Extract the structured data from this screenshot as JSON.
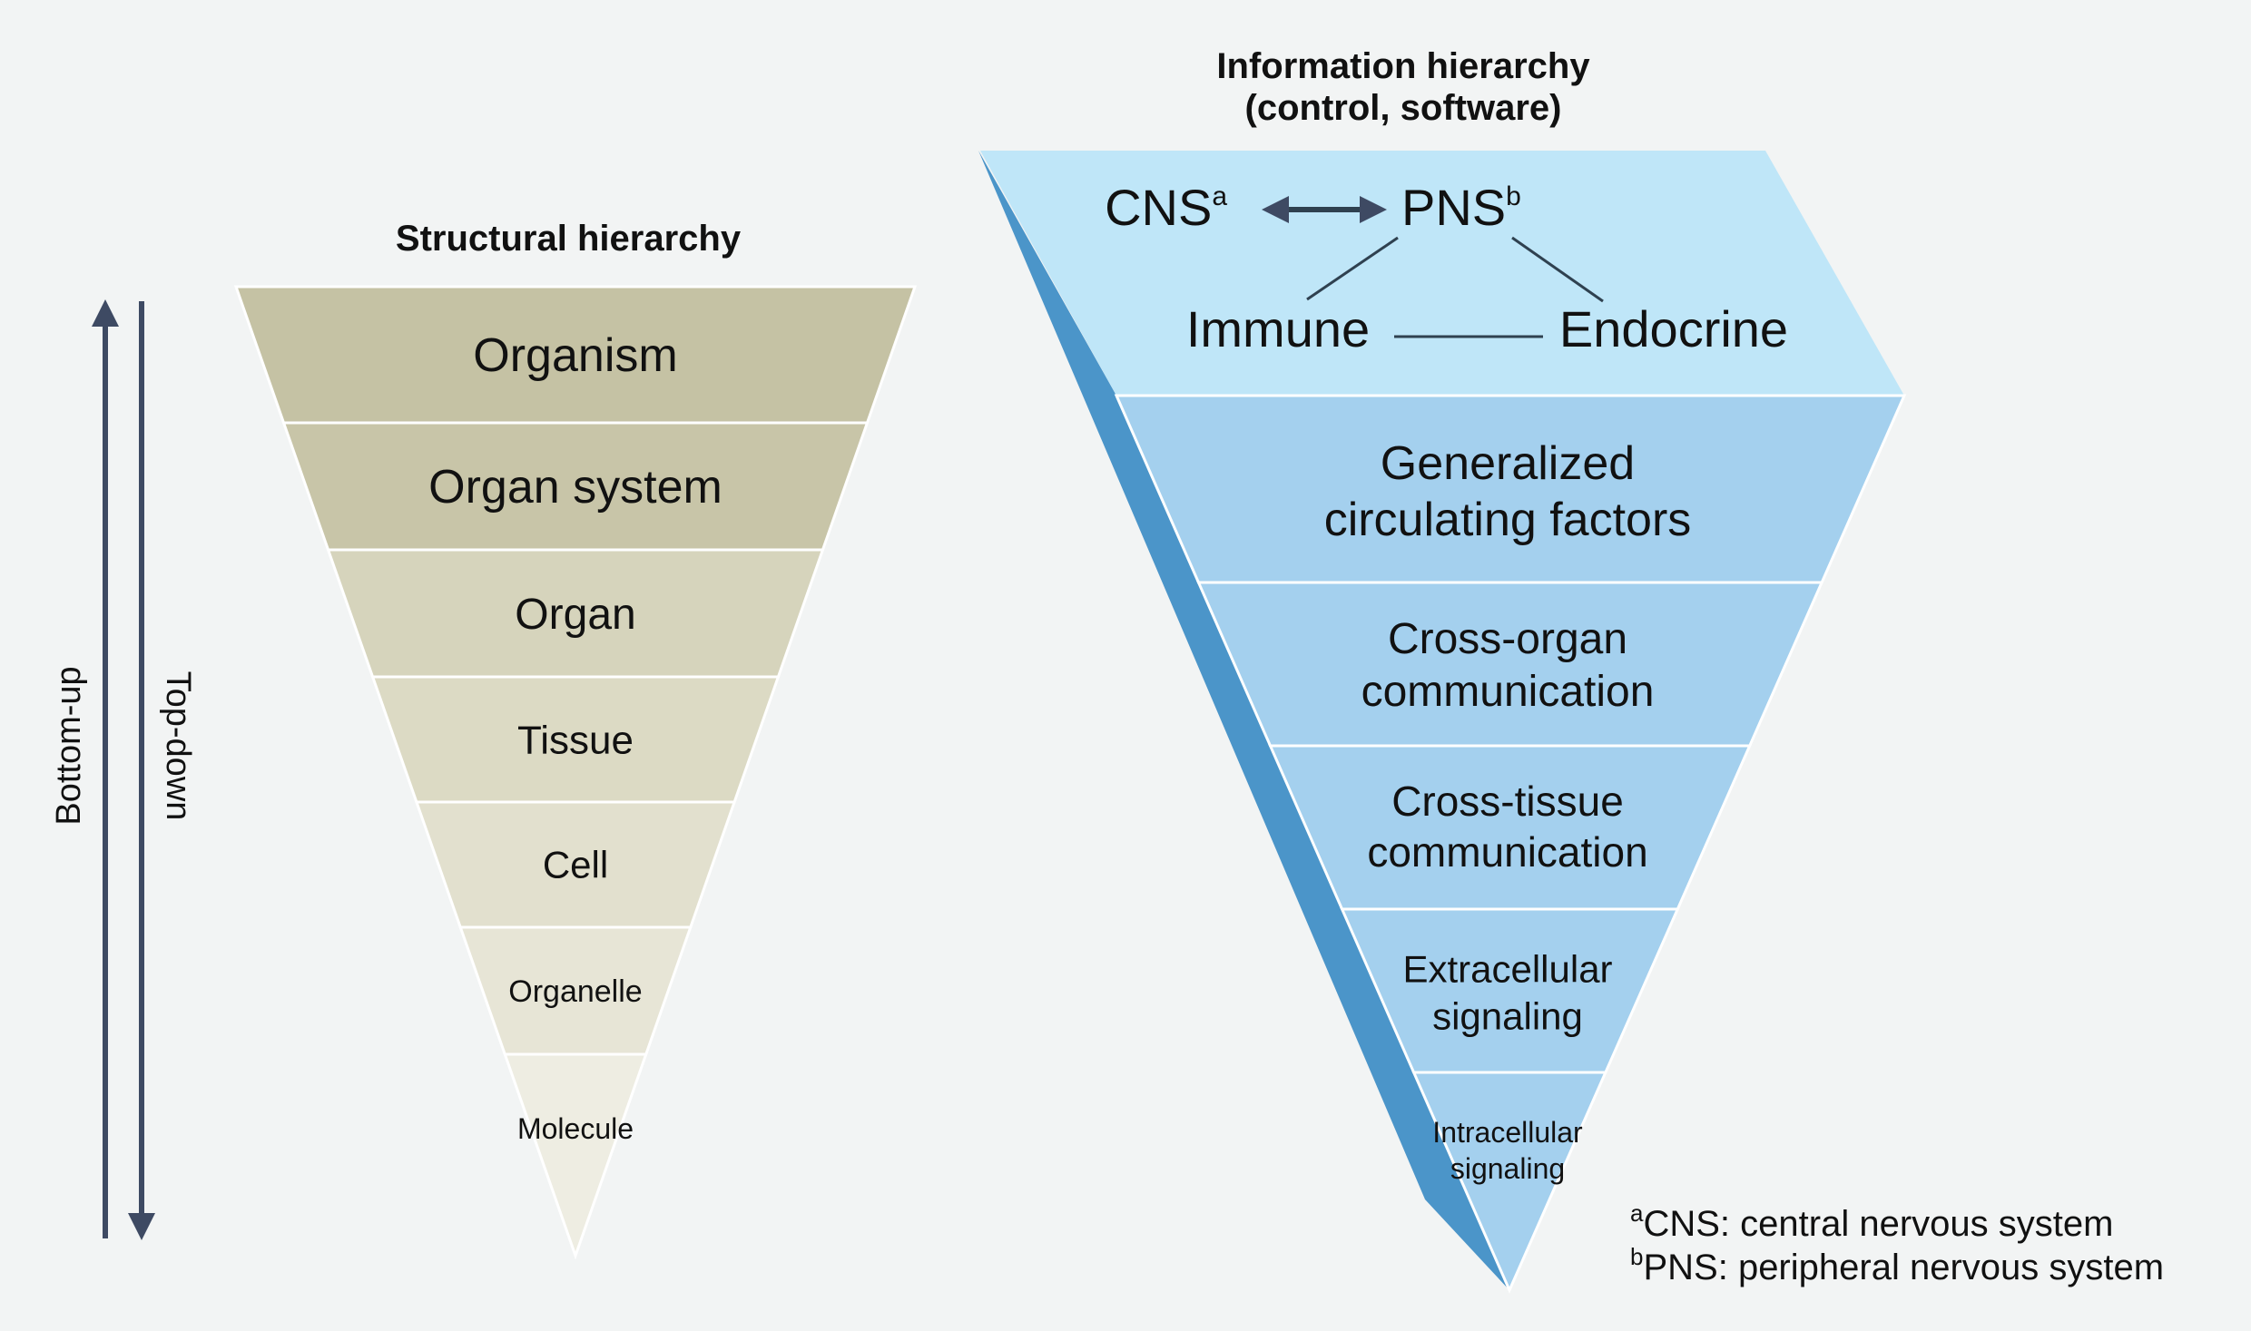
{
  "structural": {
    "title": "Structural hierarchy",
    "levels": [
      "Organism",
      "Organ system",
      "Organ",
      "Tissue",
      "Cell",
      "Organelle",
      "Molecule"
    ],
    "colors": [
      "#c5c2a4",
      "#c8c5a8",
      "#d6d4bc",
      "#dcdac4",
      "#e2e0ce",
      "#e7e5d6",
      "#eeede2"
    ],
    "arrows": {
      "bottom_up": "Bottom-up",
      "top_down": "Top-down",
      "color": "#3e4a63"
    }
  },
  "information": {
    "title_line1": "Information hierarchy",
    "title_line2": "(control, software)",
    "top_section": {
      "color": "#bfe6f8",
      "cns": "CNS",
      "cns_sup": "a",
      "pns": "PNS",
      "pns_sup": "b",
      "immune": "Immune",
      "endocrine": "Endocrine"
    },
    "levels": [
      {
        "lines": [
          "Generalized",
          "circulating factors"
        ]
      },
      {
        "lines": [
          "Cross-organ",
          "communication"
        ]
      },
      {
        "lines": [
          "Cross-tissue",
          "communication"
        ]
      },
      {
        "lines": [
          "Extracellular",
          "signaling"
        ]
      },
      {
        "lines": [
          "Intracellular",
          "signaling"
        ]
      }
    ],
    "level_color": "#a4d0ee",
    "edge_color": "#4b95c9",
    "line_color": "#2f4150"
  },
  "footnotes": [
    {
      "sup": "a",
      "text": "CNS: central nervous system"
    },
    {
      "sup": "b",
      "text": "PNS: peripheral nervous system"
    }
  ]
}
